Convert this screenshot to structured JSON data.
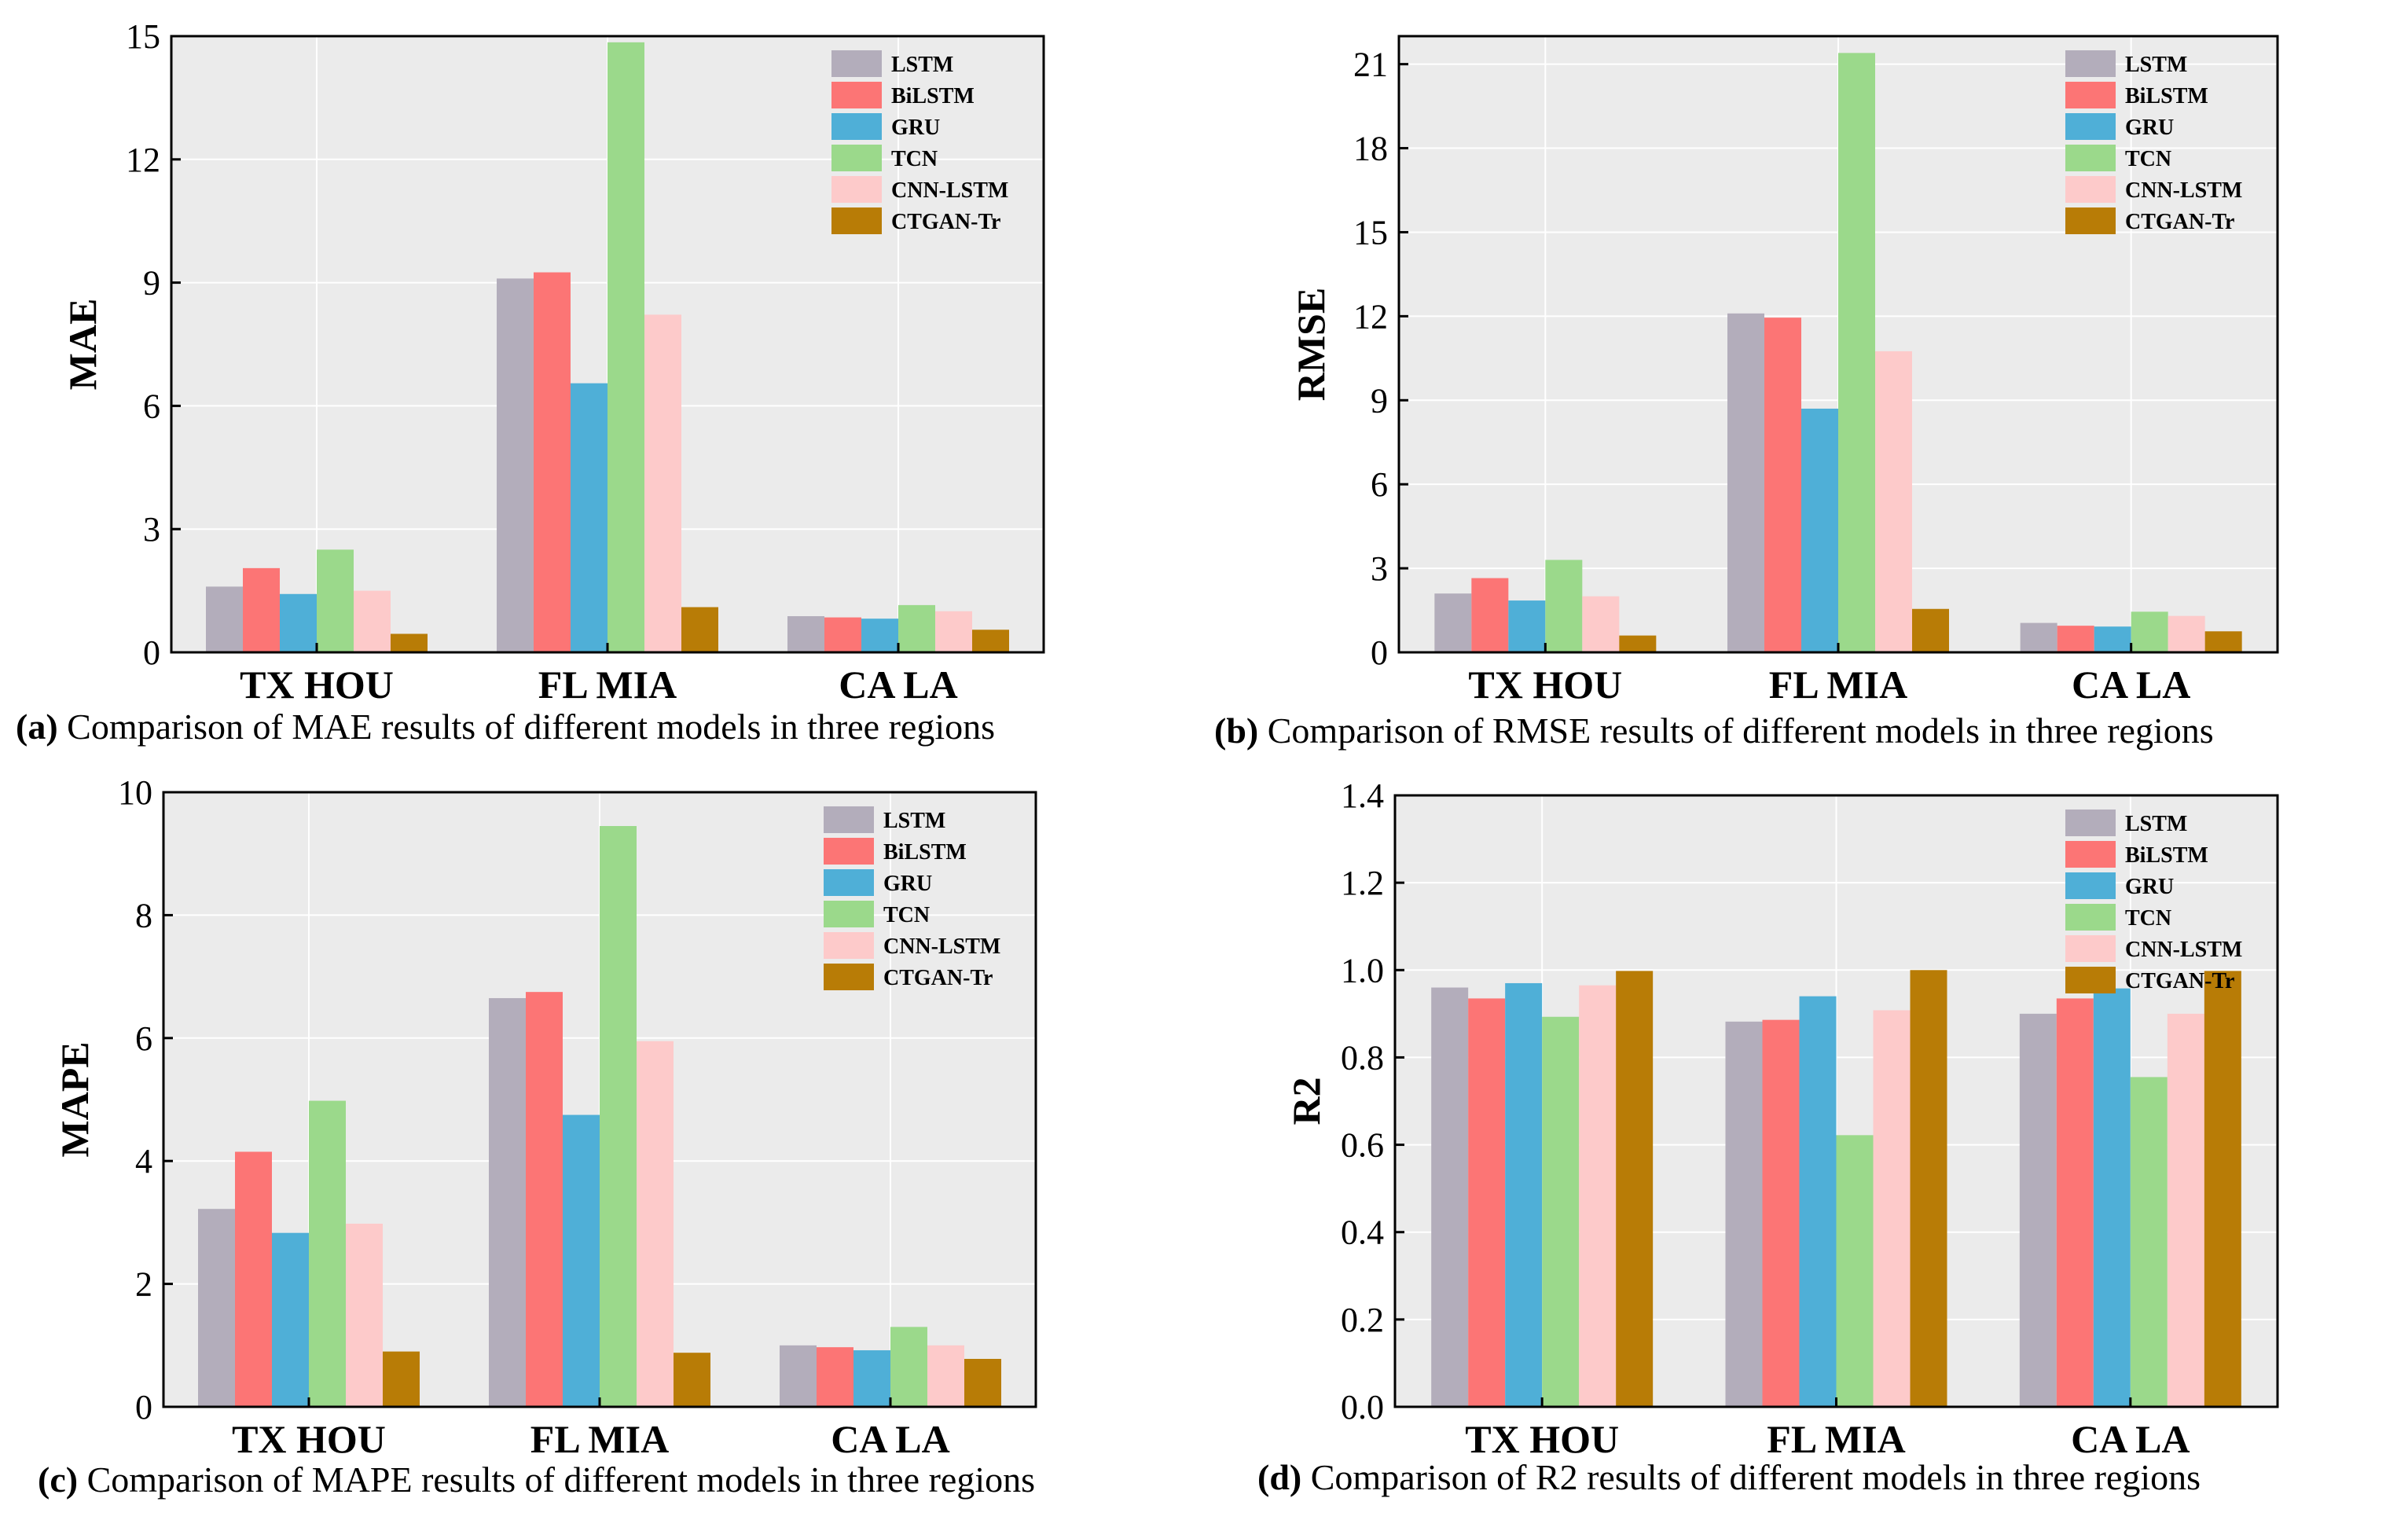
{
  "colors": {
    "LSTM": "#b3adbb",
    "BiLSTM": "#fc7575",
    "GRU": "#4fafd7",
    "TCN": "#9bd98b",
    "CNN-LSTM": "#fdcaca",
    "CTGAN-Tr": "#b87c06",
    "plot_bg": "#ebebeb",
    "grid": "#ffffff"
  },
  "chart_data": [
    {
      "type": "bar",
      "id": "a",
      "categories": [
        "TX HOU",
        "FL MIA",
        "CA LA"
      ],
      "series": [
        {
          "name": "LSTM",
          "values": [
            1.6,
            9.1,
            0.88
          ]
        },
        {
          "name": "BiLSTM",
          "values": [
            2.05,
            9.25,
            0.85
          ]
        },
        {
          "name": "GRU",
          "values": [
            1.42,
            6.55,
            0.82
          ]
        },
        {
          "name": "TCN",
          "values": [
            2.5,
            14.85,
            1.15
          ]
        },
        {
          "name": "CNN-LSTM",
          "values": [
            1.5,
            8.22,
            1.0
          ]
        },
        {
          "name": "CTGAN-Tr",
          "values": [
            0.45,
            1.1,
            0.55
          ]
        }
      ],
      "ylabel": "MAE",
      "ylim": [
        0,
        15
      ],
      "yticks": [
        "0",
        "3",
        "6",
        "9",
        "12",
        "15"
      ],
      "ytick_values": [
        0,
        3,
        6,
        9,
        12,
        15
      ],
      "caption_label": "(a)",
      "caption_text": "Comparison of MAE results of different models in three regions"
    },
    {
      "type": "bar",
      "id": "b",
      "categories": [
        "TX HOU",
        "FL MIA",
        "CA LA"
      ],
      "series": [
        {
          "name": "LSTM",
          "values": [
            2.1,
            12.1,
            1.05
          ]
        },
        {
          "name": "BiLSTM",
          "values": [
            2.65,
            11.95,
            0.95
          ]
        },
        {
          "name": "GRU",
          "values": [
            1.85,
            8.7,
            0.92
          ]
        },
        {
          "name": "TCN",
          "values": [
            3.3,
            21.4,
            1.45
          ]
        },
        {
          "name": "CNN-LSTM",
          "values": [
            2.0,
            10.75,
            1.3
          ]
        },
        {
          "name": "CTGAN-Tr",
          "values": [
            0.6,
            1.55,
            0.75
          ]
        }
      ],
      "ylabel": "RMSE",
      "ylim": [
        0,
        22
      ],
      "yticks": [
        "0",
        "3",
        "6",
        "9",
        "12",
        "15",
        "18",
        "21"
      ],
      "ytick_values": [
        0,
        3,
        6,
        9,
        12,
        15,
        18,
        21
      ],
      "caption_label": "(b)",
      "caption_text": "Comparison of RMSE results of different models in three regions"
    },
    {
      "type": "bar",
      "id": "c",
      "categories": [
        "TX HOU",
        "FL MIA",
        "CA LA"
      ],
      "series": [
        {
          "name": "LSTM",
          "values": [
            3.22,
            6.65,
            1.0
          ]
        },
        {
          "name": "BiLSTM",
          "values": [
            4.15,
            6.75,
            0.97
          ]
        },
        {
          "name": "GRU",
          "values": [
            2.83,
            4.75,
            0.92
          ]
        },
        {
          "name": "TCN",
          "values": [
            4.98,
            9.45,
            1.3
          ]
        },
        {
          "name": "CNN-LSTM",
          "values": [
            2.98,
            5.95,
            1.0
          ]
        },
        {
          "name": "CTGAN-Tr",
          "values": [
            0.9,
            0.88,
            0.78
          ]
        }
      ],
      "ylabel": "MAPE",
      "ylim": [
        0,
        10
      ],
      "yticks": [
        "0",
        "2",
        "4",
        "6",
        "8",
        "10"
      ],
      "ytick_values": [
        0,
        2,
        4,
        6,
        8,
        10
      ],
      "caption_label": "(c)",
      "caption_text": "Comparison of MAPE results of different models in three regions"
    },
    {
      "type": "bar",
      "id": "d",
      "categories": [
        "TX HOU",
        "FL MIA",
        "CA LA"
      ],
      "series": [
        {
          "name": "LSTM",
          "values": [
            0.96,
            0.882,
            0.9
          ]
        },
        {
          "name": "BiLSTM",
          "values": [
            0.935,
            0.886,
            0.935
          ]
        },
        {
          "name": "GRU",
          "values": [
            0.97,
            0.94,
            0.958
          ]
        },
        {
          "name": "TCN",
          "values": [
            0.893,
            0.622,
            0.755
          ]
        },
        {
          "name": "CNN-LSTM",
          "values": [
            0.965,
            0.908,
            0.9
          ]
        },
        {
          "name": "CTGAN-Tr",
          "values": [
            0.998,
            1.0,
            0.998
          ]
        }
      ],
      "ylabel": "R2",
      "ylim": [
        0,
        1.4
      ],
      "yticks": [
        "0.0",
        "0.2",
        "0.4",
        "0.6",
        "0.8",
        "1.0",
        "1.2",
        "1.4"
      ],
      "ytick_values": [
        0,
        0.2,
        0.4,
        0.6,
        0.8,
        1.0,
        1.2,
        1.4
      ],
      "caption_label": "(d)",
      "caption_text": "Comparison of R2 results of different models in three regions"
    }
  ]
}
